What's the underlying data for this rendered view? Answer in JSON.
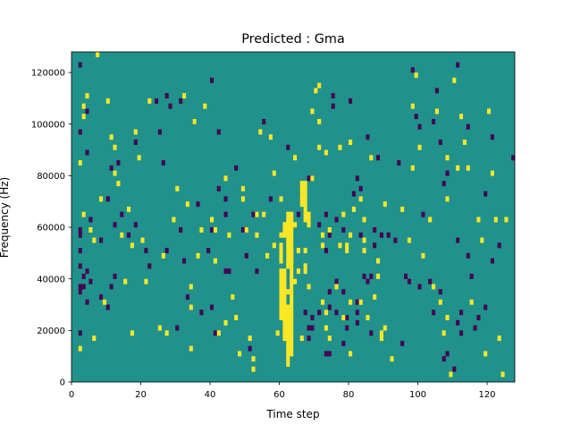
{
  "chart_data": {
    "type": "heatmap",
    "title": "Predicted : Gma",
    "xlabel": "Time step",
    "ylabel": "Frequency (Hz)",
    "xlim": [
      0,
      128
    ],
    "ylim": [
      0,
      128000
    ],
    "x_ticks": [
      0,
      20,
      40,
      60,
      80,
      100,
      120
    ],
    "y_ticks": [
      0,
      20000,
      40000,
      60000,
      80000,
      100000,
      120000
    ],
    "x_tick_labels": [
      "0",
      "20",
      "40",
      "60",
      "80",
      "100",
      "120"
    ],
    "y_tick_labels": [
      "0",
      "20000",
      "40000",
      "60000",
      "80000",
      "100000",
      "120000"
    ],
    "grid": false,
    "colormap": [
      "#440154",
      "#21918c",
      "#fde725"
    ],
    "background_value": 0,
    "low_cells": [
      [
        2,
        122000
      ],
      [
        2,
        96000
      ],
      [
        2,
        56000
      ],
      [
        2,
        58000
      ],
      [
        2,
        50000
      ],
      [
        2,
        44000
      ],
      [
        2,
        36000
      ],
      [
        2,
        34000
      ],
      [
        2,
        18000
      ],
      [
        3,
        40000
      ],
      [
        3,
        36000
      ],
      [
        4,
        104000
      ],
      [
        4,
        88000
      ],
      [
        4,
        42000
      ],
      [
        4,
        30000
      ],
      [
        5,
        38000
      ],
      [
        5,
        62000
      ],
      [
        8,
        54000
      ],
      [
        8,
        32000
      ],
      [
        10,
        70000
      ],
      [
        10,
        28000
      ],
      [
        11,
        82000
      ],
      [
        11,
        36000
      ],
      [
        12,
        60000
      ],
      [
        12,
        40000
      ],
      [
        13,
        84000
      ],
      [
        14,
        64000
      ],
      [
        16,
        56000
      ],
      [
        18,
        92000
      ],
      [
        18,
        60000
      ],
      [
        21,
        50000
      ],
      [
        22,
        44000
      ],
      [
        24,
        108000
      ],
      [
        25,
        96000
      ],
      [
        26,
        84000
      ],
      [
        27,
        50000
      ],
      [
        27,
        110000
      ],
      [
        28,
        106000
      ],
      [
        30,
        20000
      ],
      [
        31,
        58000
      ],
      [
        31,
        108000
      ],
      [
        32,
        46000
      ],
      [
        33,
        32000
      ],
      [
        35,
        100000
      ],
      [
        36,
        68000
      ],
      [
        37,
        26000
      ],
      [
        39,
        50000
      ],
      [
        40,
        116000
      ],
      [
        40,
        58000
      ],
      [
        40,
        28000
      ],
      [
        41,
        18000
      ],
      [
        42,
        96000
      ],
      [
        42,
        74000
      ],
      [
        44,
        70000
      ],
      [
        44,
        64000
      ],
      [
        44,
        42000
      ],
      [
        45,
        42000
      ],
      [
        47,
        82000
      ],
      [
        49,
        58000
      ],
      [
        50,
        58000
      ],
      [
        50,
        48000
      ],
      [
        51,
        12000
      ],
      [
        52,
        64000
      ],
      [
        53,
        42000
      ],
      [
        55,
        100000
      ],
      [
        57,
        70000
      ],
      [
        60,
        40000
      ],
      [
        62,
        90000
      ],
      [
        65,
        64000
      ],
      [
        66,
        72000
      ],
      [
        67,
        26000
      ],
      [
        68,
        78000
      ],
      [
        68,
        20000
      ],
      [
        68,
        16000
      ],
      [
        69,
        24000
      ],
      [
        69,
        20000
      ],
      [
        69,
        78000
      ],
      [
        71,
        26000
      ],
      [
        71,
        60000
      ],
      [
        73,
        64000
      ],
      [
        73,
        50000
      ],
      [
        73,
        10000
      ],
      [
        74,
        56000
      ],
      [
        74,
        28000
      ],
      [
        74,
        10000
      ],
      [
        74,
        34000
      ],
      [
        75,
        110000
      ],
      [
        75,
        106000
      ],
      [
        76,
        62000
      ],
      [
        76,
        38000
      ],
      [
        76,
        26000
      ],
      [
        78,
        58000
      ],
      [
        78,
        34000
      ],
      [
        78,
        14000
      ],
      [
        79,
        20000
      ],
      [
        79,
        24000
      ],
      [
        80,
        108000
      ],
      [
        81,
        72000
      ],
      [
        82,
        78000
      ],
      [
        82,
        26000
      ],
      [
        82,
        22000
      ],
      [
        82,
        30000
      ],
      [
        83,
        56000
      ],
      [
        83,
        74000
      ],
      [
        84,
        40000
      ],
      [
        85,
        94000
      ],
      [
        85,
        38000
      ],
      [
        86,
        18000
      ],
      [
        86,
        40000
      ],
      [
        87,
        52000
      ],
      [
        87,
        58000
      ],
      [
        88,
        86000
      ],
      [
        89,
        56000
      ],
      [
        91,
        56000
      ],
      [
        93,
        54000
      ],
      [
        94,
        84000
      ],
      [
        95,
        14000
      ],
      [
        96,
        40000
      ],
      [
        97,
        38000
      ],
      [
        98,
        120000
      ],
      [
        99,
        102000
      ],
      [
        100,
        36000
      ],
      [
        100,
        98000
      ],
      [
        101,
        64000
      ],
      [
        103,
        38000
      ],
      [
        104,
        26000
      ],
      [
        104,
        100000
      ],
      [
        105,
        112000
      ],
      [
        106,
        92000
      ],
      [
        106,
        34000
      ],
      [
        107,
        76000
      ],
      [
        107,
        8000
      ],
      [
        108,
        10000
      ],
      [
        108,
        80000
      ],
      [
        110,
        4000
      ],
      [
        111,
        122000
      ],
      [
        111,
        54000
      ],
      [
        111,
        22000
      ],
      [
        112,
        26000
      ],
      [
        112,
        18000
      ],
      [
        114,
        48000
      ],
      [
        114,
        98000
      ],
      [
        115,
        40000
      ],
      [
        116,
        20000
      ],
      [
        117,
        24000
      ],
      [
        119,
        72000
      ],
      [
        119,
        28000
      ],
      [
        121,
        94000
      ],
      [
        121,
        46000
      ],
      [
        123,
        52000
      ],
      [
        127,
        86000
      ]
    ],
    "high_cells": [
      [
        2,
        12000
      ],
      [
        2,
        84000
      ],
      [
        3,
        106000
      ],
      [
        3,
        102000
      ],
      [
        3,
        64000
      ],
      [
        4,
        110000
      ],
      [
        5,
        58000
      ],
      [
        6,
        54000
      ],
      [
        6,
        16000
      ],
      [
        7,
        126000
      ],
      [
        8,
        70000
      ],
      [
        9,
        30000
      ],
      [
        10,
        108000
      ],
      [
        11,
        94000
      ],
      [
        12,
        90000
      ],
      [
        12,
        80000
      ],
      [
        13,
        76000
      ],
      [
        14,
        56000
      ],
      [
        15,
        38000
      ],
      [
        16,
        66000
      ],
      [
        17,
        52000
      ],
      [
        17,
        18000
      ],
      [
        18,
        96000
      ],
      [
        19,
        86000
      ],
      [
        20,
        54000
      ],
      [
        21,
        38000
      ],
      [
        22,
        108000
      ],
      [
        25,
        20000
      ],
      [
        26,
        48000
      ],
      [
        27,
        18000
      ],
      [
        29,
        62000
      ],
      [
        30,
        74000
      ],
      [
        32,
        110000
      ],
      [
        33,
        68000
      ],
      [
        34,
        36000
      ],
      [
        34,
        28000
      ],
      [
        34,
        12000
      ],
      [
        35,
        100000
      ],
      [
        36,
        48000
      ],
      [
        37,
        58000
      ],
      [
        38,
        106000
      ],
      [
        40,
        62000
      ],
      [
        41,
        58000
      ],
      [
        41,
        46000
      ],
      [
        42,
        18000
      ],
      [
        44,
        78000
      ],
      [
        44,
        22000
      ],
      [
        45,
        56000
      ],
      [
        46,
        32000
      ],
      [
        47,
        24000
      ],
      [
        48,
        10000
      ],
      [
        49,
        74000
      ],
      [
        49,
        70000
      ],
      [
        50,
        58000
      ],
      [
        51,
        16000
      ],
      [
        52,
        8000
      ],
      [
        52,
        4000
      ],
      [
        53,
        56000
      ],
      [
        53,
        64000
      ],
      [
        54,
        96000
      ],
      [
        55,
        64000
      ],
      [
        56,
        48000
      ],
      [
        57,
        94000
      ],
      [
        58,
        80000
      ],
      [
        58,
        52000
      ],
      [
        59,
        18000
      ],
      [
        60,
        56000
      ],
      [
        60,
        70000
      ],
      [
        61,
        16000
      ],
      [
        62,
        34000
      ],
      [
        62,
        26000
      ],
      [
        62,
        20000
      ],
      [
        64,
        38000
      ],
      [
        64,
        60000
      ],
      [
        64,
        86000
      ],
      [
        65,
        42000
      ],
      [
        65,
        50000
      ],
      [
        66,
        16000
      ],
      [
        67,
        50000
      ],
      [
        67,
        42000
      ],
      [
        68,
        36000
      ],
      [
        69,
        78000
      ],
      [
        69,
        104000
      ],
      [
        70,
        112000
      ],
      [
        71,
        114000
      ],
      [
        71,
        100000
      ],
      [
        71,
        90000
      ],
      [
        72,
        56000
      ],
      [
        72,
        52000
      ],
      [
        72,
        30000
      ],
      [
        73,
        26000
      ],
      [
        73,
        20000
      ],
      [
        73,
        88000
      ],
      [
        74,
        16000
      ],
      [
        74,
        58000
      ],
      [
        76,
        36000
      ],
      [
        77,
        52000
      ],
      [
        77,
        90000
      ],
      [
        78,
        24000
      ],
      [
        78,
        64000
      ],
      [
        79,
        52000
      ],
      [
        79,
        50000
      ],
      [
        80,
        92000
      ],
      [
        80,
        56000
      ],
      [
        80,
        30000
      ],
      [
        80,
        10000
      ],
      [
        81,
        66000
      ],
      [
        83,
        70000
      ],
      [
        83,
        30000
      ],
      [
        84,
        62000
      ],
      [
        84,
        54000
      ],
      [
        84,
        50000
      ],
      [
        85,
        24000
      ],
      [
        86,
        86000
      ],
      [
        87,
        32000
      ],
      [
        88,
        46000
      ],
      [
        88,
        40000
      ],
      [
        89,
        16000
      ],
      [
        89,
        18000
      ],
      [
        90,
        20000
      ],
      [
        90,
        68000
      ],
      [
        92,
        8000
      ],
      [
        95,
        66000
      ],
      [
        97,
        54000
      ],
      [
        98,
        106000
      ],
      [
        98,
        82000
      ],
      [
        99,
        118000
      ],
      [
        100,
        90000
      ],
      [
        101,
        48000
      ],
      [
        103,
        62000
      ],
      [
        104,
        36000
      ],
      [
        105,
        104000
      ],
      [
        106,
        30000
      ],
      [
        107,
        18000
      ],
      [
        108,
        86000
      ],
      [
        108,
        70000
      ],
      [
        108,
        24000
      ],
      [
        109,
        2000
      ],
      [
        110,
        116000
      ],
      [
        111,
        82000
      ],
      [
        112,
        102000
      ],
      [
        113,
        92000
      ],
      [
        114,
        82000
      ],
      [
        115,
        30000
      ],
      [
        117,
        62000
      ],
      [
        118,
        54000
      ],
      [
        119,
        10000
      ],
      [
        120,
        104000
      ],
      [
        121,
        80000
      ],
      [
        122,
        62000
      ],
      [
        123,
        16000
      ],
      [
        124,
        2000
      ],
      [
        125,
        62000
      ]
    ],
    "high_blocks": [
      [
        60,
        61,
        24000,
        44000
      ],
      [
        61,
        62,
        18000,
        44000
      ],
      [
        62,
        63,
        6000,
        30000
      ],
      [
        62,
        63,
        44000,
        66000
      ],
      [
        63,
        64,
        10000,
        66000
      ],
      [
        66,
        67,
        68000,
        78000
      ],
      [
        67,
        68,
        62000,
        78000
      ],
      [
        67,
        68,
        44000,
        46000
      ],
      [
        68,
        69,
        60000,
        66000
      ],
      [
        63,
        64,
        46000,
        52000
      ],
      [
        60,
        61,
        46000,
        54000
      ],
      [
        61,
        62,
        56000,
        62000
      ]
    ]
  }
}
